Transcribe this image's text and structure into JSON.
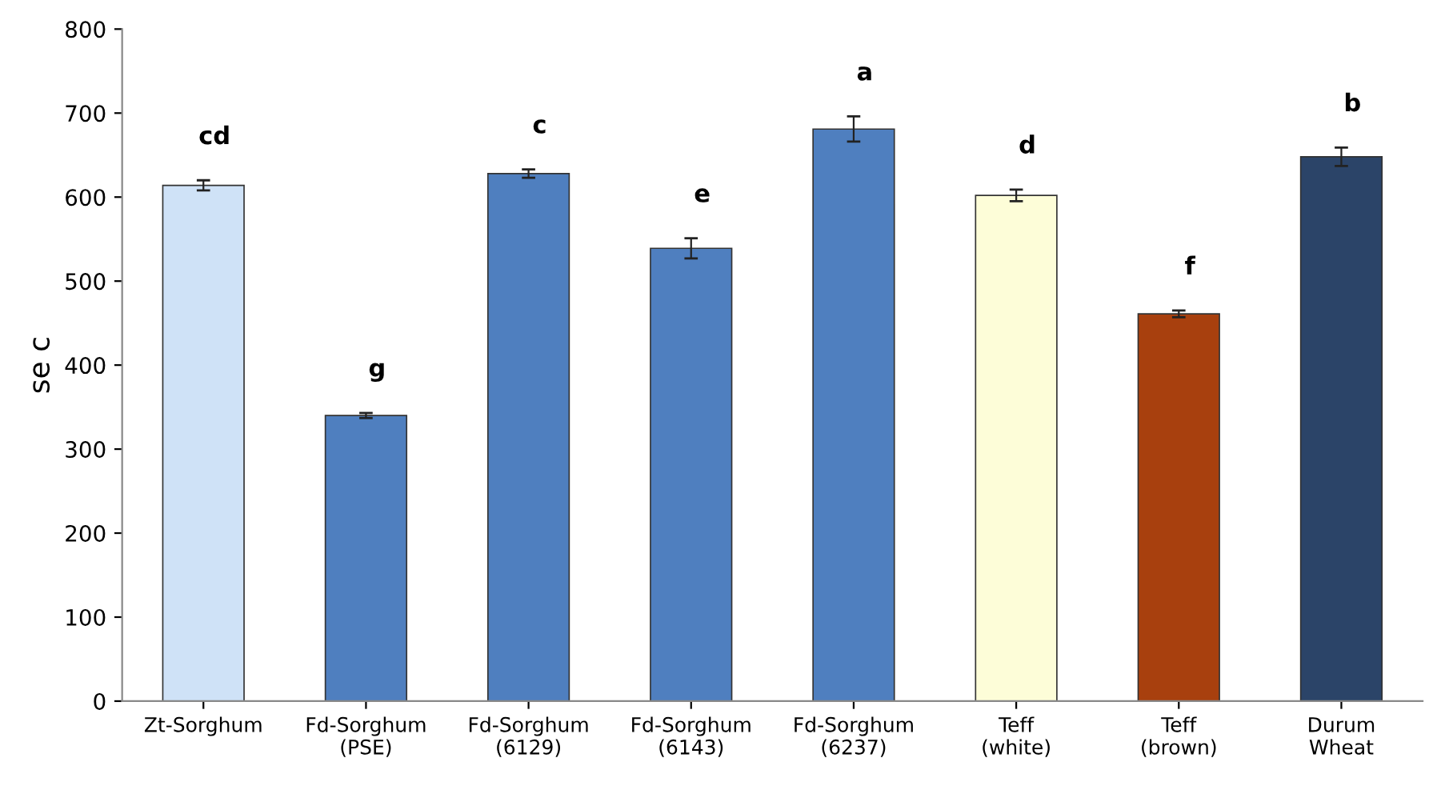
{
  "chart_data": {
    "type": "bar",
    "ylabel": "se c",
    "categories": [
      "Zt-Sorghum",
      "Fd-Sorghum\n(PSE)",
      "Fd-Sorghum\n(6129)",
      "Fd-Sorghum\n(6143)",
      "Fd-Sorghum\n(6237)",
      "Teff\n(white)",
      "Teff\n(brown)",
      "Durum\nWheat"
    ],
    "values": [
      614,
      340,
      628,
      539,
      681,
      602,
      461,
      648
    ],
    "errors": [
      6,
      3,
      5,
      12,
      15,
      7,
      4,
      11
    ],
    "colors": [
      "#cfe2f7",
      "#4f7fbf",
      "#4f7fbf",
      "#4f7fbf",
      "#4f7fbf",
      "#fdfdd8",
      "#a8400e",
      "#2b4468"
    ],
    "ylim": [
      0,
      800
    ],
    "yticks": [
      0,
      100,
      200,
      300,
      400,
      500,
      600,
      700,
      800
    ],
    "grid": false,
    "legend": false,
    "annotations": [
      "cd",
      "g",
      "c",
      "e",
      "a",
      "d",
      "f",
      "b"
    ]
  }
}
